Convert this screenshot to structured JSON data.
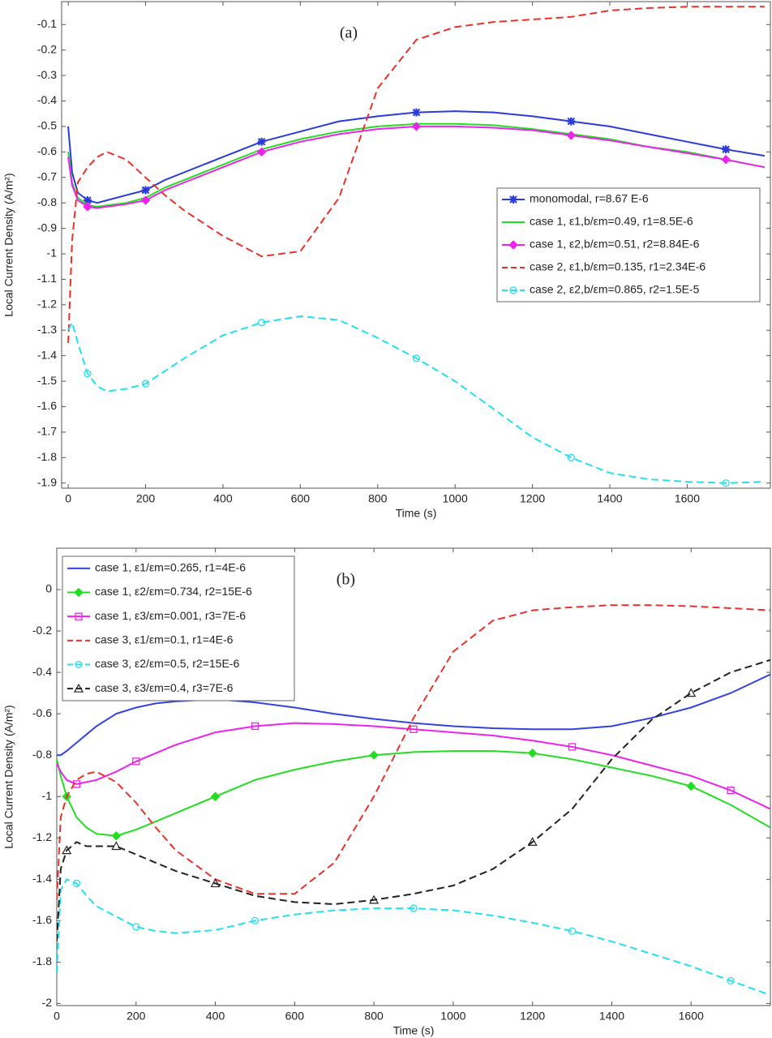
{
  "chart_data": [
    {
      "type": "line",
      "annotation": "(a)",
      "xlabel": "Time (s)",
      "ylabel": "Local Current Density (A/m²)",
      "xlim": [
        -17,
        1815
      ],
      "ylim": [
        -1.92,
        -0.01
      ],
      "xticks": [
        0,
        200,
        400,
        600,
        800,
        1000,
        1200,
        1400,
        1600
      ],
      "yticks": [
        -0.1,
        -0.2,
        -0.3,
        -0.4,
        -0.5,
        -0.6,
        -0.7,
        -0.8,
        -0.9,
        -1,
        -1.1,
        -1.2,
        -1.3,
        -1.4,
        -1.5,
        -1.6,
        -1.7,
        -1.8,
        -1.9
      ],
      "legend": "right",
      "x": [
        0,
        10,
        25,
        50,
        75,
        100,
        150,
        200,
        250,
        300,
        400,
        500,
        600,
        700,
        800,
        900,
        1000,
        1100,
        1200,
        1300,
        1400,
        1500,
        1600,
        1700,
        1800
      ],
      "series": [
        {
          "name": "monomodal, r=8.67 E-6",
          "color": "#2a3bd6",
          "marker": "star",
          "dashed": false,
          "values": [
            -0.5,
            -0.68,
            -0.76,
            -0.79,
            -0.8,
            -0.79,
            -0.77,
            -0.75,
            -0.71,
            -0.68,
            -0.62,
            -0.56,
            -0.52,
            -0.48,
            -0.46,
            -0.445,
            -0.44,
            -0.445,
            -0.46,
            -0.48,
            -0.5,
            -0.53,
            -0.56,
            -0.59,
            -0.615
          ]
        },
        {
          "name": "case 1, ε1,b/εm=0.49, r1=8.5E-6",
          "color": "#22dd22",
          "marker": "none",
          "dashed": false,
          "values": [
            -0.6,
            -0.72,
            -0.78,
            -0.81,
            -0.815,
            -0.81,
            -0.8,
            -0.78,
            -0.74,
            -0.71,
            -0.65,
            -0.59,
            -0.55,
            -0.52,
            -0.5,
            -0.49,
            -0.49,
            -0.495,
            -0.51,
            -0.53,
            -0.55,
            -0.58,
            -0.6,
            -0.63,
            -0.66
          ]
        },
        {
          "name": "case 1, ε2,b/εm=0.51, r2=8.84E-6",
          "color": "#ee22ee",
          "marker": "diamond",
          "dashed": false,
          "values": [
            -0.62,
            -0.73,
            -0.79,
            -0.815,
            -0.82,
            -0.815,
            -0.805,
            -0.79,
            -0.75,
            -0.72,
            -0.66,
            -0.6,
            -0.56,
            -0.53,
            -0.51,
            -0.5,
            -0.5,
            -0.505,
            -0.515,
            -0.535,
            -0.555,
            -0.58,
            -0.605,
            -0.63,
            -0.66
          ]
        },
        {
          "name": "case 2, ε1,b/εm=0.135, r1=2.34E-6",
          "color": "#e8322a",
          "marker": "none",
          "dashed": true,
          "values": [
            -1.35,
            -0.95,
            -0.72,
            -0.66,
            -0.62,
            -0.6,
            -0.63,
            -0.7,
            -0.77,
            -0.83,
            -0.93,
            -1.01,
            -0.99,
            -0.78,
            -0.35,
            -0.16,
            -0.11,
            -0.09,
            -0.08,
            -0.07,
            -0.045,
            -0.035,
            -0.03,
            -0.03,
            -0.03
          ]
        },
        {
          "name": "case 2, ε2,b/εm=0.865, r2=1.5E-5",
          "color": "#22e0ee",
          "marker": "circle",
          "dashed": true,
          "values": [
            -1.3,
            -1.27,
            -1.35,
            -1.47,
            -1.52,
            -1.54,
            -1.53,
            -1.51,
            -1.46,
            -1.41,
            -1.32,
            -1.27,
            -1.245,
            -1.26,
            -1.33,
            -1.41,
            -1.5,
            -1.61,
            -1.72,
            -1.8,
            -1.86,
            -1.885,
            -1.895,
            -1.9,
            -1.895
          ]
        }
      ]
    },
    {
      "type": "line",
      "annotation": "(b)",
      "xlabel": "Time (s)",
      "ylabel": "Local Current Density (A/m²)",
      "xlim": [
        0,
        1800
      ],
      "ylim": [
        -2.01,
        0.2
      ],
      "xticks": [
        0,
        200,
        400,
        600,
        800,
        1000,
        1200,
        1400,
        1600
      ],
      "yticks": [
        0,
        -0.2,
        -0.4,
        -0.6,
        -0.8,
        -1,
        -1.2,
        -1.4,
        -1.6,
        -1.8,
        -2
      ],
      "legend": "upper left",
      "x": [
        0,
        10,
        25,
        50,
        75,
        100,
        150,
        200,
        250,
        300,
        400,
        500,
        600,
        700,
        800,
        900,
        1000,
        1100,
        1200,
        1300,
        1400,
        1500,
        1600,
        1700,
        1800
      ],
      "series": [
        {
          "name": "case 1, ε1/εm=0.265, r1=4E-6",
          "color": "#3344dd",
          "marker": "none",
          "dashed": false,
          "values": [
            -0.8,
            -0.8,
            -0.78,
            -0.74,
            -0.7,
            -0.66,
            -0.6,
            -0.57,
            -0.55,
            -0.54,
            -0.53,
            -0.545,
            -0.57,
            -0.6,
            -0.625,
            -0.645,
            -0.66,
            -0.67,
            -0.675,
            -0.675,
            -0.66,
            -0.62,
            -0.57,
            -0.5,
            -0.41
          ]
        },
        {
          "name": "case 1, ε2/εm=0.734, r2=15E-6",
          "color": "#22dd22",
          "marker": "diamond",
          "dashed": false,
          "values": [
            -0.82,
            -0.9,
            -1.0,
            -1.1,
            -1.15,
            -1.18,
            -1.19,
            -1.16,
            -1.12,
            -1.08,
            -1.0,
            -0.92,
            -0.87,
            -0.83,
            -0.8,
            -0.785,
            -0.78,
            -0.78,
            -0.79,
            -0.82,
            -0.86,
            -0.9,
            -0.95,
            -1.04,
            -1.15
          ]
        },
        {
          "name": "case 1, ε3/εm=0.001, r3=7E-6",
          "color": "#ee22ee",
          "marker": "square",
          "dashed": false,
          "values": [
            -0.84,
            -0.88,
            -0.92,
            -0.94,
            -0.93,
            -0.92,
            -0.88,
            -0.83,
            -0.79,
            -0.75,
            -0.69,
            -0.66,
            -0.645,
            -0.65,
            -0.66,
            -0.675,
            -0.69,
            -0.705,
            -0.73,
            -0.76,
            -0.8,
            -0.85,
            -0.9,
            -0.97,
            -1.06
          ]
        },
        {
          "name": "case 3, ε1/εm=0.1, r1=4E-6",
          "color": "#e8322a",
          "marker": "none",
          "dashed": true,
          "values": [
            -1.5,
            -1.1,
            -1.0,
            -0.92,
            -0.89,
            -0.88,
            -0.93,
            -1.03,
            -1.15,
            -1.26,
            -1.4,
            -1.47,
            -1.47,
            -1.32,
            -1.0,
            -0.62,
            -0.3,
            -0.15,
            -0.1,
            -0.085,
            -0.075,
            -0.075,
            -0.08,
            -0.09,
            -0.1
          ]
        },
        {
          "name": "case 3, ε2/εm=0.5, r2=15E-6",
          "color": "#22e0ee",
          "marker": "circle",
          "dashed": true,
          "values": [
            -1.85,
            -1.45,
            -1.4,
            -1.42,
            -1.48,
            -1.53,
            -1.58,
            -1.63,
            -1.65,
            -1.66,
            -1.645,
            -1.6,
            -1.57,
            -1.55,
            -1.54,
            -1.54,
            -1.55,
            -1.575,
            -1.61,
            -1.65,
            -1.7,
            -1.76,
            -1.82,
            -1.89,
            -1.96
          ]
        },
        {
          "name": "case 3, ε3/εm=0.4, r3=7E-6",
          "color": "#222222",
          "marker": "triangle",
          "dashed": true,
          "values": [
            -1.7,
            -1.35,
            -1.26,
            -1.22,
            -1.24,
            -1.24,
            -1.24,
            -1.28,
            -1.32,
            -1.36,
            -1.42,
            -1.48,
            -1.51,
            -1.52,
            -1.5,
            -1.47,
            -1.43,
            -1.35,
            -1.22,
            -1.06,
            -0.82,
            -0.63,
            -0.5,
            -0.4,
            -0.34
          ]
        }
      ]
    }
  ]
}
